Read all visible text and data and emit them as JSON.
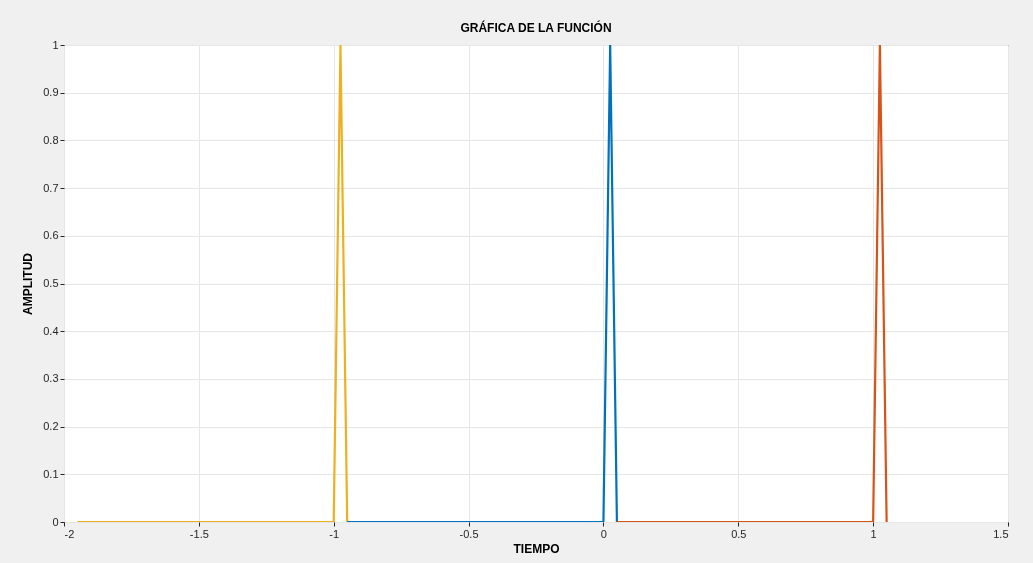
{
  "chart_data": {
    "type": "line",
    "title": "GRÁFICA DE LA FUNCIÓN",
    "xlabel": "TIEMPO",
    "ylabel": "AMPLITUD",
    "xlim": [
      -2,
      1.5
    ],
    "xticks": [
      -2,
      -1.5,
      -1,
      -0.5,
      0,
      0.5,
      1,
      1.5
    ],
    "ylim": [
      0,
      1
    ],
    "yticks": [
      0,
      0.1,
      0.2,
      0.3,
      0.4,
      0.5,
      0.6,
      0.7,
      0.8,
      0.9,
      1
    ],
    "grid": true,
    "series": [
      {
        "color": "#edb120",
        "x": [
          -1.95,
          -1,
          -0.975,
          -0.95
        ],
        "values": [
          0,
          0,
          1,
          0
        ]
      },
      {
        "color": "#0072bd",
        "x": [
          -0.95,
          0,
          0.025,
          0.05
        ],
        "values": [
          0,
          0,
          1,
          0
        ]
      },
      {
        "color": "#d95319",
        "x": [
          0.05,
          1,
          1.025,
          1.05
        ],
        "values": [
          0,
          0,
          1,
          0
        ]
      }
    ]
  }
}
